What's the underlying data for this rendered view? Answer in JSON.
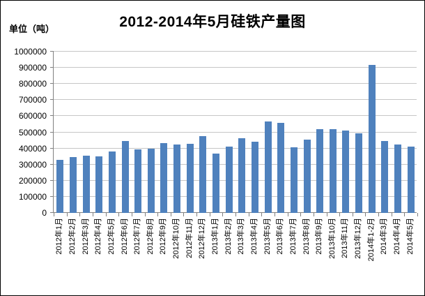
{
  "header": {
    "title": "2012-2014年5月硅铁产量图",
    "unit_label": "单位（吨）"
  },
  "colors": {
    "bar": "#4F81BD",
    "gridline": "#C6C6C6",
    "axis": "#808080",
    "text": "#000000",
    "background": "#FFFFFF",
    "frame_border": "#000000"
  },
  "chart_data": {
    "type": "bar",
    "title": "2012-2014年5月硅铁产量图",
    "ylabel": "单位（吨）",
    "xlabel": "",
    "unit": "吨",
    "legend": "none",
    "grid": true,
    "ylim": [
      0,
      1000000
    ],
    "ytick_step": 100000,
    "ytick_labels": [
      "0",
      "100000",
      "200000",
      "300000",
      "400000",
      "500000",
      "600000",
      "700000",
      "800000",
      "900000",
      "1000000"
    ],
    "categories": [
      "2012年1月",
      "2012年2月",
      "2012年3月",
      "2012年4月",
      "2012年5月",
      "2012年6月",
      "2012年7月",
      "2012年8月",
      "2012年9月",
      "2012年10月",
      "2012年11月",
      "2012年12月",
      "2013年1月",
      "2013年2月",
      "2013年3月",
      "2013年4月",
      "2013年5月",
      "2013年6月",
      "2013年7月",
      "2013年8月",
      "2013年9月",
      "2013年10月",
      "2013年11月",
      "2013年12月",
      "2014年1-2月",
      "2014年3月",
      "2014年4月",
      "2014年5月"
    ],
    "values": [
      330000,
      346000,
      357000,
      352000,
      383000,
      448000,
      394000,
      400000,
      434000,
      423000,
      430000,
      476000,
      369000,
      410000,
      465000,
      443000,
      567000,
      560000,
      408000,
      454000,
      521000,
      520000,
      513000,
      494000,
      918000,
      448000,
      426000,
      413000
    ]
  }
}
